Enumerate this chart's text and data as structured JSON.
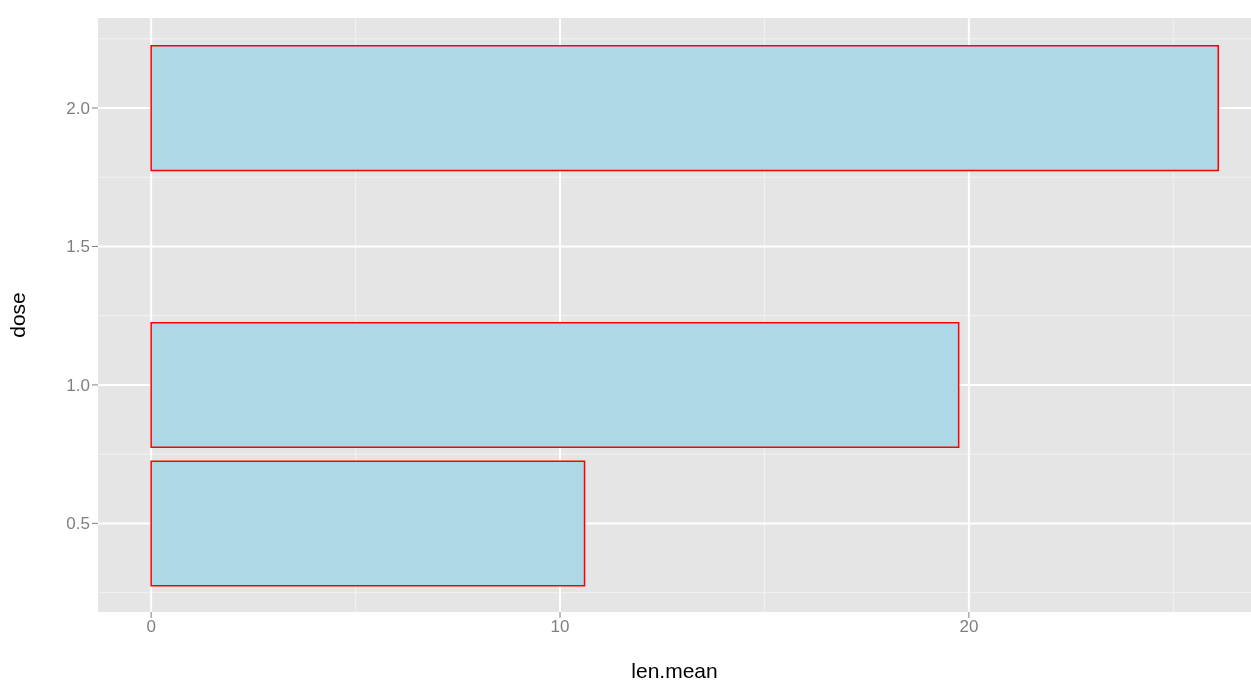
{
  "chart_data": {
    "type": "bar",
    "orientation": "horizontal",
    "xlabel": "len.mean",
    "ylabel": "dose",
    "x": [
      0.5,
      1,
      2
    ],
    "values": [
      10.6,
      19.75,
      26.1
    ],
    "color": "#add8e6",
    "xlim": [
      -1.3,
      26.9
    ],
    "xticks": [
      0,
      10,
      20
    ],
    "ylim": [
      0.18,
      2.325
    ],
    "yticks": [
      0.5,
      {
        "value": 1,
        "label": "1.0"
      },
      1.5,
      {
        "value": 2,
        "label": "2.0"
      }
    ],
    "grid": true
  }
}
